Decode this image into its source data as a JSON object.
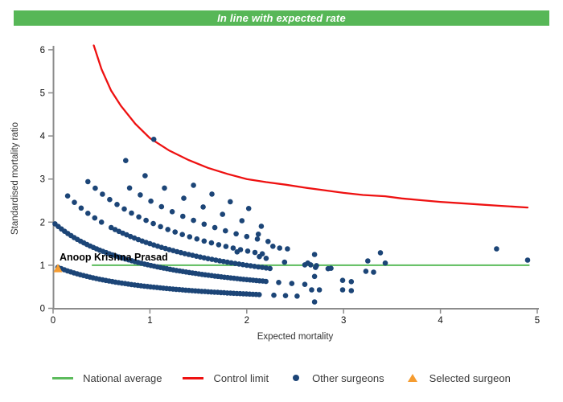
{
  "banner": {
    "title": "In line with expected rate",
    "background_color": "#57b757",
    "text_color": "#ffffff"
  },
  "chart_data": {
    "type": "scatter",
    "title": "In line with expected rate",
    "xlabel": "Expected mortality",
    "ylabel": "Standardised mortality ratio",
    "xlim": [
      0,
      5
    ],
    "ylim": [
      0,
      6
    ],
    "x_ticks": [
      "0",
      "1",
      "2",
      "3",
      "4",
      "5"
    ],
    "y_ticks": [
      "0",
      "1",
      "2",
      "3",
      "4",
      "5",
      "6"
    ],
    "grid": "off",
    "axis_color": "#8c8c8c",
    "national_average": {
      "label": "National average",
      "color": "#5cbb5c",
      "y": 1,
      "x_start": 0.4,
      "x_end": 4.92
    },
    "control_limit": {
      "label": "Control limit",
      "color": "#ee1111",
      "points": [
        [
          0.42,
          6.1
        ],
        [
          0.5,
          5.55
        ],
        [
          0.6,
          5.05
        ],
        [
          0.7,
          4.7
        ],
        [
          0.85,
          4.28
        ],
        [
          1.0,
          3.95
        ],
        [
          1.2,
          3.66
        ],
        [
          1.4,
          3.44
        ],
        [
          1.6,
          3.26
        ],
        [
          1.8,
          3.12
        ],
        [
          2.0,
          3.0
        ],
        [
          2.2,
          2.93
        ],
        [
          2.4,
          2.87
        ],
        [
          2.6,
          2.8
        ],
        [
          2.8,
          2.74
        ],
        [
          3.0,
          2.68
        ],
        [
          3.2,
          2.63
        ],
        [
          3.43,
          2.6
        ],
        [
          3.6,
          2.55
        ],
        [
          3.8,
          2.51
        ],
        [
          4.0,
          2.47
        ],
        [
          4.2,
          2.44
        ],
        [
          4.4,
          2.41
        ],
        [
          4.6,
          2.38
        ],
        [
          4.9,
          2.34
        ]
      ]
    },
    "selected_surgeon": {
      "label": "Selected surgeon",
      "name": "Anoop Krishna Prasad",
      "x": 0.05,
      "y": 0.93,
      "marker": "triangle",
      "color": "#f59c30"
    },
    "other_surgeons": {
      "label": "Other surgeons",
      "marker": "circle",
      "color": "#1c4577",
      "note": "Dense curved bands are surgeons grouped by observed deaths k; band shape follows SMR = k / (1 + expected mortality). Segments are [x_from, x_to, x_step].",
      "bands": [
        {
          "deaths": 1,
          "segments": [
            [
              0.05,
              2.16,
              0.033
            ],
            [
              2.28,
              2.52,
              0.12
            ]
          ]
        },
        {
          "deaths": 2,
          "segments": [
            [
              0.02,
              2.22,
              0.033
            ],
            [
              2.33,
              2.6,
              0.135
            ]
          ]
        },
        {
          "deaths": 3,
          "segments": [
            [
              0.15,
              0.55,
              0.07
            ],
            [
              0.6,
              2.26,
              0.04
            ]
          ]
        },
        {
          "deaths": 4,
          "segments": [
            [
              0.36,
              2.2,
              0.075
            ]
          ]
        },
        {
          "deaths": 5,
          "segments": [
            [
              0.79,
              2.3,
              0.11
            ]
          ]
        },
        {
          "deaths": 6,
          "segments": [
            [
              0.75,
              2.15,
              0.2
            ]
          ]
        },
        {
          "deaths": 7,
          "segments": [
            [
              1.45,
              2.05,
              0.19
            ]
          ]
        },
        {
          "deaths": 8,
          "segments": [
            [
              1.04,
              1.04,
              1.0
            ]
          ]
        }
      ],
      "extra_points": [
        [
          1.9,
          1.31
        ],
        [
          2.12,
          1.72
        ],
        [
          2.13,
          1.2
        ],
        [
          2.2,
          1.16
        ],
        [
          2.27,
          1.44
        ],
        [
          2.34,
          1.4
        ],
        [
          2.42,
          1.38
        ],
        [
          2.39,
          1.07
        ],
        [
          2.6,
          1.01
        ],
        [
          2.66,
          1.01
        ],
        [
          2.72,
          0.99
        ],
        [
          2.84,
          0.92
        ],
        [
          2.63,
          1.05
        ],
        [
          2.7,
          1.25
        ],
        [
          2.71,
          0.95
        ],
        [
          2.87,
          0.93
        ],
        [
          2.7,
          0.74
        ],
        [
          2.99,
          0.65
        ],
        [
          3.08,
          0.62
        ],
        [
          2.67,
          0.43
        ],
        [
          2.75,
          0.43
        ],
        [
          2.99,
          0.43
        ],
        [
          3.08,
          0.41
        ],
        [
          2.7,
          0.15
        ],
        [
          3.25,
          1.1
        ],
        [
          3.23,
          0.86
        ],
        [
          3.31,
          0.84
        ],
        [
          3.38,
          1.29
        ],
        [
          3.43,
          1.05
        ],
        [
          4.58,
          1.38
        ],
        [
          4.9,
          1.12
        ]
      ]
    },
    "legend": [
      {
        "label": "National average",
        "swatch": "line",
        "color": "#5cbb5c"
      },
      {
        "label": "Control limit",
        "swatch": "line",
        "color": "#ee1111"
      },
      {
        "label": "Other surgeons",
        "swatch": "dot",
        "color": "#1c4577"
      },
      {
        "label": "Selected surgeon",
        "swatch": "triangle",
        "color": "#f59c30"
      }
    ]
  }
}
